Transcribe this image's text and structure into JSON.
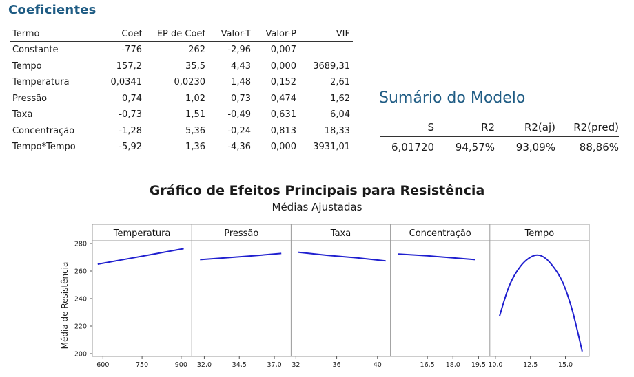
{
  "coef": {
    "title": "Coeficientes",
    "headers": [
      "Termo",
      "Coef",
      "EP de Coef",
      "Valor-T",
      "Valor-P",
      "VIF"
    ],
    "rows": [
      [
        "Constante",
        "-776",
        "262",
        "-2,96",
        "0,007",
        ""
      ],
      [
        "Tempo",
        "157,2",
        "35,5",
        "4,43",
        "0,000",
        "3689,31"
      ],
      [
        "Temperatura",
        "0,0341",
        "0,0230",
        "1,48",
        "0,152",
        "2,61"
      ],
      [
        "Pressão",
        "0,74",
        "1,02",
        "0,73",
        "0,474",
        "1,62"
      ],
      [
        "Taxa",
        "-0,73",
        "1,51",
        "-0,49",
        "0,631",
        "6,04"
      ],
      [
        "Concentração",
        "-1,28",
        "5,36",
        "-0,24",
        "0,813",
        "18,33"
      ],
      [
        "Tempo*Tempo",
        "-5,92",
        "1,36",
        "-4,36",
        "0,000",
        "3931,01"
      ]
    ]
  },
  "summary": {
    "title": "Sumário do Modelo",
    "headers": [
      "S",
      "R2",
      "R2(aj)",
      "R2(pred)"
    ],
    "values": [
      "6,01720",
      "94,57%",
      "93,09%",
      "88,86%"
    ]
  },
  "chart_data": {
    "type": "line",
    "title": "Gráfico de Efeitos Principais para Resistência",
    "subtitle": "Médias Ajustadas",
    "ylabel": "Média de Resistência",
    "ylim": [
      198,
      282
    ],
    "yticks": [
      200,
      220,
      240,
      260,
      280
    ],
    "line_color": "#1f1fcf",
    "grid": false,
    "panels": [
      {
        "name": "Temperatura",
        "xlim": [
          570,
          930
        ],
        "xticks": [
          "600",
          "750",
          "900"
        ],
        "tick_values": [
          600,
          750,
          900
        ],
        "x": [
          580,
          700,
          800,
          910
        ],
        "y": [
          265,
          269.1,
          272.5,
          276.3
        ]
      },
      {
        "name": "Pressão",
        "xlim": [
          31.3,
          38.0
        ],
        "xticks": [
          "32,0",
          "34,5",
          "37,0"
        ],
        "tick_values": [
          32.0,
          34.5,
          37.0
        ],
        "x": [
          31.7,
          33.5,
          35.5,
          37.5
        ],
        "y": [
          268.3,
          269.6,
          271.1,
          272.8
        ]
      },
      {
        "name": "Taxa",
        "xlim": [
          31.8,
          41.0
        ],
        "xticks": [
          "32",
          "36",
          "40"
        ],
        "tick_values": [
          32,
          36,
          40
        ],
        "x": [
          32.2,
          35.0,
          38.0,
          40.8
        ],
        "y": [
          273.7,
          271.5,
          269.6,
          267.4
        ]
      },
      {
        "name": "Concentração",
        "xlim": [
          14.5,
          20.0
        ],
        "xticks": [
          "16,5",
          "18,0",
          "19,5"
        ],
        "tick_values": [
          16.5,
          18.0,
          19.5
        ],
        "x": [
          14.8,
          16.5,
          18.0,
          19.3
        ],
        "y": [
          272.4,
          271.1,
          269.6,
          268.3
        ]
      },
      {
        "name": "Tempo",
        "xlim": [
          9.8,
          16.5
        ],
        "xticks": [
          "10,0",
          "12,5",
          "15,0"
        ],
        "tick_values": [
          10.0,
          12.5,
          15.0
        ],
        "x": [
          10.3,
          11.0,
          11.8,
          12.6,
          13.3,
          14.0,
          14.8,
          15.5,
          16.2
        ],
        "y": [
          227.4,
          249.5,
          263.6,
          270.6,
          271.0,
          264.9,
          252.0,
          231.1,
          201.6
        ]
      }
    ]
  }
}
